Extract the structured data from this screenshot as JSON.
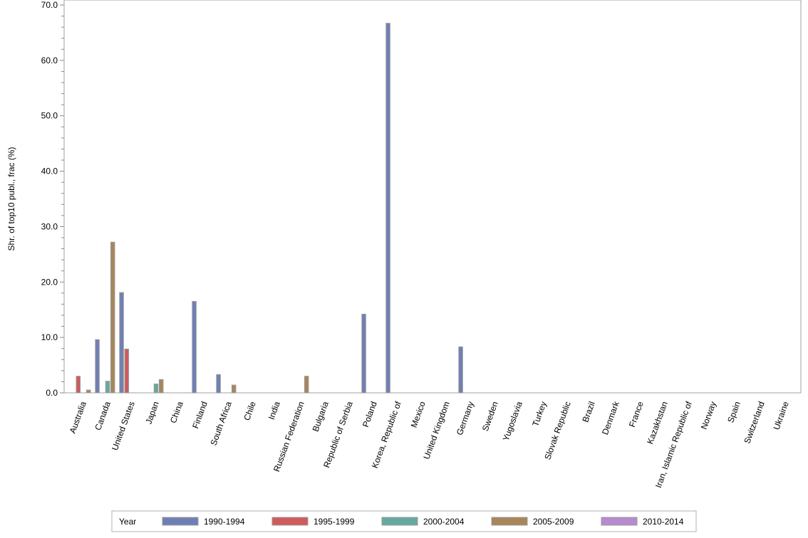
{
  "chart_data": {
    "type": "bar",
    "title": "",
    "xlabel": "",
    "ylabel": "Shr. of top10 publ., frac (%)",
    "ylim": [
      0,
      70
    ],
    "yticks": [
      "0.0",
      "10.0",
      "20.0",
      "30.0",
      "40.0",
      "50.0",
      "60.0",
      "70.0"
    ],
    "categories": [
      "Australia",
      "Canada",
      "United States",
      "Japan",
      "China",
      "Finland",
      "South Africa",
      "Chile",
      "India",
      "Russian Federation",
      "Bulgaria",
      "Republic of Serbia",
      "Poland",
      "Korea, Republic of",
      "Mexico",
      "United Kingdom",
      "Germany",
      "Sweden",
      "Yugoslavia",
      "Turkey",
      "Slovak Republic",
      "Brazil",
      "Denmark",
      "France",
      "Kazakhstan",
      "Iran, Islamic Republic of",
      "Norway",
      "Spain",
      "Switzerland",
      "Ukraine"
    ],
    "legend_title": "Year",
    "legend_position": "bottom",
    "series": [
      {
        "name": "1990-1994",
        "color": "#6f7fb5",
        "values": [
          0,
          9.6,
          18.1,
          0,
          0,
          16.5,
          3.3,
          0,
          0,
          0,
          0,
          0,
          14.2,
          66.7,
          0,
          0,
          8.3,
          0,
          0,
          0,
          0,
          0,
          0,
          0,
          0,
          0,
          0,
          0,
          0,
          0
        ]
      },
      {
        "name": "1995-1999",
        "color": "#d05b5b",
        "values": [
          3.0,
          0,
          7.9,
          0,
          0,
          0,
          0,
          0,
          0,
          0,
          0,
          0,
          0,
          0,
          0,
          0,
          0,
          0,
          0,
          0,
          0,
          0,
          0,
          0,
          0,
          0,
          0,
          0,
          0,
          0
        ]
      },
      {
        "name": "2000-2004",
        "color": "#66a99f",
        "values": [
          0,
          2.1,
          0,
          1.6,
          0,
          0,
          0,
          0,
          0,
          0,
          0,
          0,
          0,
          0,
          0,
          0,
          0,
          0,
          0,
          0,
          0,
          0,
          0,
          0,
          0,
          0,
          0,
          0,
          0,
          0
        ]
      },
      {
        "name": "2005-2009",
        "color": "#a8865a",
        "values": [
          0.5,
          27.2,
          0,
          2.4,
          0,
          0,
          1.4,
          0,
          0,
          3.0,
          0,
          0,
          0,
          0,
          0,
          0,
          0,
          0,
          0,
          0,
          0,
          0,
          0,
          0,
          0,
          0,
          0,
          0,
          0,
          0
        ]
      },
      {
        "name": "2010-2014",
        "color": "#b68bcf",
        "values": [
          0,
          0,
          0,
          0,
          0,
          0,
          0,
          0,
          0,
          0,
          0,
          0,
          0,
          0,
          0,
          0,
          0,
          0,
          0,
          0,
          0,
          0,
          0,
          0,
          0,
          0,
          0,
          0,
          0,
          0
        ]
      }
    ]
  }
}
